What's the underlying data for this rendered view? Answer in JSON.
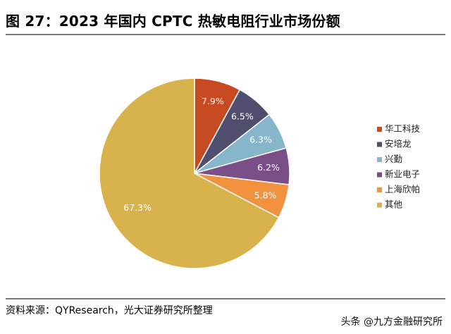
{
  "title": "图 27：2023 年国内 CPTC 热敏电阻行业市场份额",
  "source": "资料来源：QYResearch，光大证券研究所整理",
  "watermark": "头条 @九方金融研究所",
  "chart_data": {
    "type": "pie",
    "title": "图 27：2023 年国内 CPTC 热敏电阻行业市场份额",
    "legend_position": "right",
    "slices": [
      {
        "name": "华工科技",
        "value": 7.9,
        "label": "7.9%",
        "color": "#c74b22"
      },
      {
        "name": "安培龙",
        "value": 6.5,
        "label": "6.5%",
        "color": "#4f4e6e"
      },
      {
        "name": "兴勤",
        "value": 6.3,
        "label": "6.3%",
        "color": "#87b5ca"
      },
      {
        "name": "新业电子",
        "value": 6.2,
        "label": "6.2%",
        "color": "#7a4e87"
      },
      {
        "name": "上海欣帕",
        "value": 5.8,
        "label": "5.8%",
        "color": "#f2913e"
      },
      {
        "name": "其他",
        "value": 67.3,
        "label": "67.3%",
        "color": "#d8b24c"
      }
    ]
  }
}
